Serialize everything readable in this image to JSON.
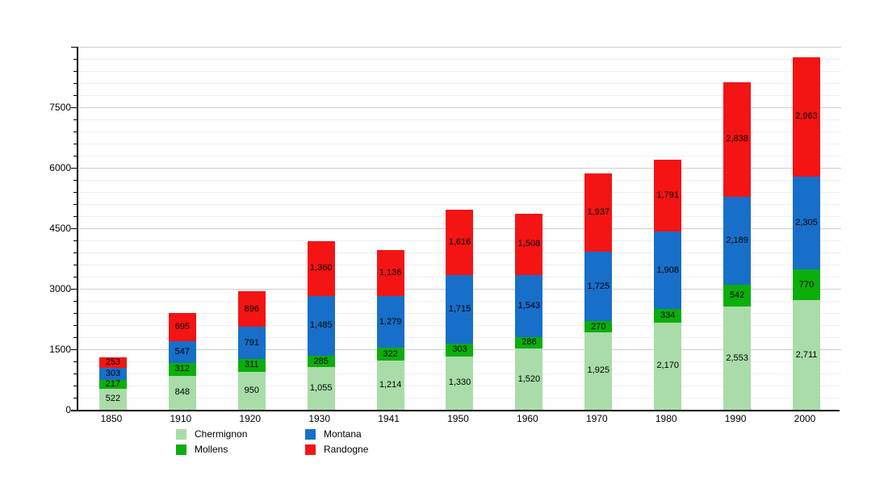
{
  "chart_data": {
    "type": "bar",
    "stacked": true,
    "title": "",
    "categories": [
      "1850",
      "1910",
      "1920",
      "1930",
      "1941",
      "1950",
      "1960",
      "1970",
      "1980",
      "1990",
      "2000"
    ],
    "series": [
      {
        "name": "Chermignon",
        "color": "#A9DCA9",
        "values": [
          522,
          848,
          950,
          1055,
          1214,
          1330,
          1520,
          1925,
          2170,
          2553,
          2711
        ]
      },
      {
        "name": "Mollens",
        "color": "#0BAE0B",
        "values": [
          217,
          312,
          311,
          285,
          322,
          303,
          286,
          270,
          334,
          542,
          770
        ]
      },
      {
        "name": "Montana",
        "color": "#176FC9",
        "values": [
          303,
          547,
          791,
          1485,
          1279,
          1715,
          1543,
          1725,
          1908,
          2189,
          2305
        ]
      },
      {
        "name": "Randogne",
        "color": "#F41414",
        "values": [
          253,
          695,
          896,
          1360,
          1136,
          1616,
          1508,
          1937,
          1791,
          2838,
          2963
        ]
      }
    ],
    "y_axis": {
      "min": 0,
      "max": 9000,
      "major_step": 1500,
      "minor_step": 300,
      "tick_labels": [
        "0",
        "1500",
        "3000",
        "4500",
        "6000",
        "7500"
      ]
    },
    "x_axis": {
      "tick_labels": [
        "1850",
        "1910",
        "1920",
        "1930",
        "1941",
        "1950",
        "1960",
        "1970",
        "1980",
        "1990",
        "2000"
      ]
    },
    "grid": true,
    "legend": {
      "position": "bottom",
      "columns": [
        [
          "Chermignon",
          "Mollens"
        ],
        [
          "Montana",
          "Randogne"
        ]
      ]
    },
    "colors": {
      "Chermignon": "#A9DCA9",
      "Mollens": "#0BAE0B",
      "Montana": "#176FC9",
      "Randogne": "#F41414",
      "axis": "#000000",
      "grid_minor": "#efefef",
      "grid_major": "#cfcfcf"
    }
  }
}
